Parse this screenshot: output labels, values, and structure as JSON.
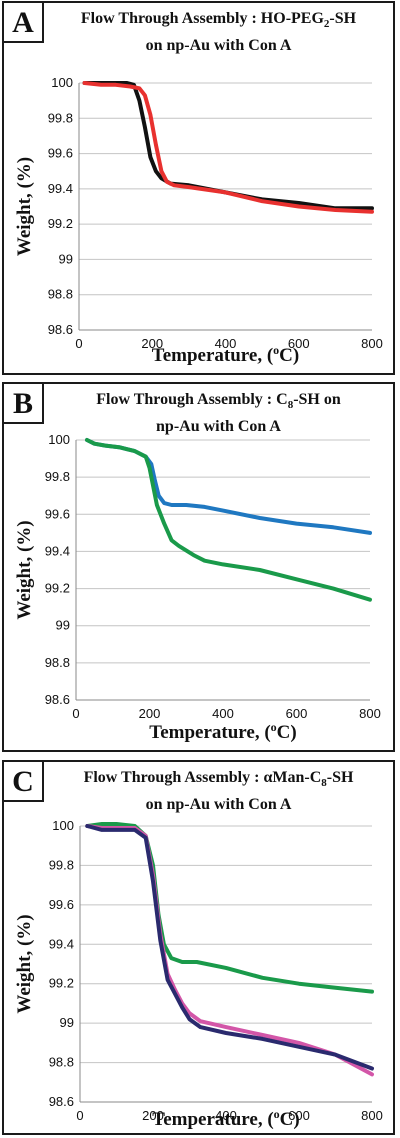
{
  "charts": [
    {
      "letter": "A",
      "title_line1_a": "Flow Through Assembly : HO-PEG",
      "title_line1_sub": "2",
      "title_line1_b": "-SH",
      "title_line2": "on np-Au with Con A",
      "chart_data": {
        "type": "line",
        "xlabel": "Temperature, (oC)",
        "ylabel": "Weight, (%)",
        "xlim": [
          0,
          800
        ],
        "ylim": [
          98.6,
          100
        ],
        "xticks": [
          "0",
          "200",
          "400",
          "600",
          "800"
        ],
        "yticks": [
          "98.6",
          "98.8",
          "99",
          "99.2",
          "99.4",
          "99.6",
          "99.8",
          "100"
        ],
        "grid": "horizontal",
        "series": [
          {
            "color": "#111111",
            "x": [
              15,
              60,
              100,
              130,
              150,
              165,
              180,
              195,
              210,
              225,
              250,
              300,
              400,
              500,
              600,
              700,
              800
            ],
            "y": [
              100,
              100,
              100,
              100,
              99.99,
              99.9,
              99.75,
              99.58,
              99.5,
              99.46,
              99.43,
              99.42,
              99.38,
              99.34,
              99.32,
              99.29,
              99.29
            ]
          },
          {
            "color": "#e8312f",
            "x": [
              15,
              60,
              100,
              140,
              165,
              180,
              195,
              210,
              225,
              240,
              260,
              300,
              400,
              500,
              600,
              700,
              800
            ],
            "y": [
              100,
              99.99,
              99.99,
              99.98,
              99.97,
              99.93,
              99.82,
              99.65,
              99.5,
              99.44,
              99.42,
              99.41,
              99.38,
              99.33,
              99.3,
              99.28,
              99.27
            ]
          }
        ]
      }
    },
    {
      "letter": "B",
      "title_line1_a": "Flow Through Assembly : C",
      "title_line1_sub": "8",
      "title_line1_b": "-SH on",
      "title_line2": "np-Au with Con A",
      "chart_data": {
        "type": "line",
        "xlabel": "Temperature, (oC)",
        "ylabel": "Weight, (%)",
        "xlim": [
          0,
          800
        ],
        "ylim": [
          98.6,
          100
        ],
        "xticks": [
          "0",
          "200",
          "400",
          "600",
          "800"
        ],
        "yticks": [
          "98.6",
          "98.8",
          "99",
          "99.2",
          "99.4",
          "99.6",
          "99.8",
          "100"
        ],
        "grid": "horizontal",
        "series": [
          {
            "color": "#1f78c1",
            "x": [
              30,
              50,
              80,
              120,
              160,
              190,
              205,
              215,
              225,
              240,
              260,
              300,
              350,
              400,
              500,
              600,
              700,
              800
            ],
            "y": [
              100,
              99.98,
              99.97,
              99.96,
              99.94,
              99.91,
              99.87,
              99.78,
              99.7,
              99.66,
              99.65,
              99.65,
              99.64,
              99.62,
              99.58,
              99.55,
              99.53,
              99.5
            ]
          },
          {
            "color": "#1a9a4a",
            "x": [
              30,
              50,
              80,
              120,
              160,
              190,
              200,
              210,
              220,
              240,
              260,
              280,
              320,
              350,
              400,
              500,
              600,
              700,
              800
            ],
            "y": [
              100,
              99.98,
              99.97,
              99.96,
              99.94,
              99.91,
              99.85,
              99.75,
              99.65,
              99.55,
              99.46,
              99.43,
              99.38,
              99.35,
              99.33,
              99.3,
              99.25,
              99.2,
              99.14
            ]
          }
        ]
      }
    },
    {
      "letter": "C",
      "title_line1_a": "Flow Through Assembly : αMan-C",
      "title_line1_sub": "8",
      "title_line1_b": "-SH",
      "title_line2": "on np-Au with Con A",
      "chart_data": {
        "type": "line",
        "xlabel": "Temperature, (oC)",
        "ylabel": "Weight, (%)",
        "xlim": [
          0,
          800
        ],
        "ylim": [
          98.6,
          100
        ],
        "xticks": [
          "0",
          "200",
          "400",
          "600",
          "800"
        ],
        "yticks": [
          "98.6",
          "98.8",
          "99",
          "99.2",
          "99.4",
          "99.6",
          "99.8",
          "100"
        ],
        "grid": "horizontal",
        "series": [
          {
            "color": "#1a9a4a",
            "x": [
              20,
              60,
              100,
              150,
              180,
              200,
              215,
              230,
              250,
              280,
              320,
              400,
              500,
              600,
              700,
              800
            ],
            "y": [
              100,
              100.01,
              100.01,
              100,
              99.95,
              99.8,
              99.55,
              99.4,
              99.33,
              99.31,
              99.31,
              99.28,
              99.23,
              99.2,
              99.18,
              99.16
            ]
          },
          {
            "color": "#d356a8",
            "x": [
              20,
              60,
              100,
              150,
              180,
              200,
              220,
              240,
              260,
              280,
              300,
              330,
              400,
              500,
              600,
              700,
              800
            ],
            "y": [
              100,
              99.99,
              99.99,
              99.99,
              99.95,
              99.75,
              99.45,
              99.25,
              99.17,
              99.1,
              99.05,
              99.01,
              98.98,
              98.94,
              98.9,
              98.84,
              98.74
            ]
          },
          {
            "color": "#2a2a6e",
            "x": [
              20,
              60,
              100,
              150,
              180,
              200,
              220,
              240,
              260,
              280,
              300,
              330,
              400,
              500,
              600,
              700,
              800
            ],
            "y": [
              100,
              99.98,
              99.98,
              99.98,
              99.94,
              99.72,
              99.42,
              99.22,
              99.15,
              99.08,
              99.02,
              98.98,
              98.95,
              98.92,
              98.88,
              98.84,
              98.77
            ]
          }
        ]
      }
    }
  ]
}
